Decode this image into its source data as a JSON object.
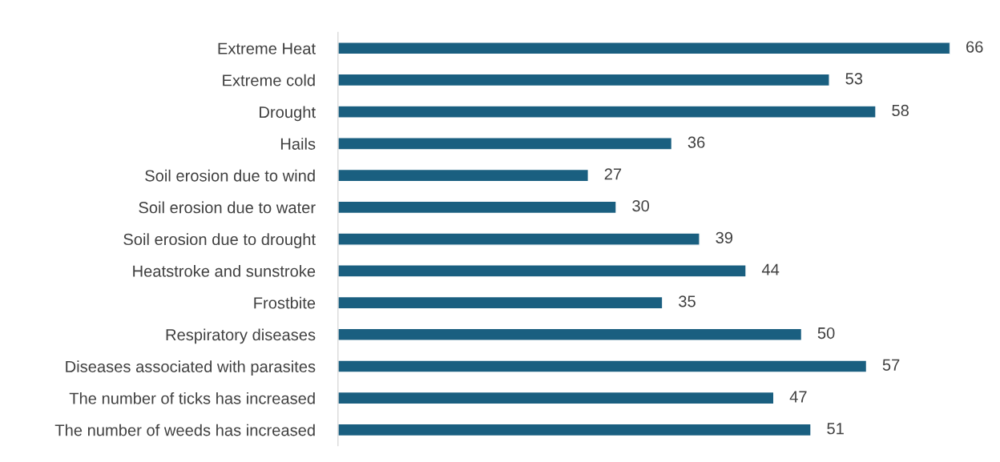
{
  "chart_data": {
    "type": "bar",
    "orientation": "horizontal",
    "categories": [
      "Extreme Heat",
      "Extreme cold",
      "Drought",
      "Hails",
      "Soil erosion due to wind",
      "Soil erosion due to water",
      "Soil erosion due to drought",
      "Heatstroke and sunstroke",
      "Frostbite",
      "Respiratory diseases",
      "Diseases associated with parasites",
      "The number of ticks has increased",
      "The number of weeds has increased"
    ],
    "values": [
      66,
      53,
      58,
      36,
      27,
      30,
      39,
      44,
      35,
      50,
      57,
      47,
      51
    ],
    "color": "#1a5f80",
    "data_labels": true,
    "grid": false,
    "legend": false,
    "tick_labels": "y"
  }
}
